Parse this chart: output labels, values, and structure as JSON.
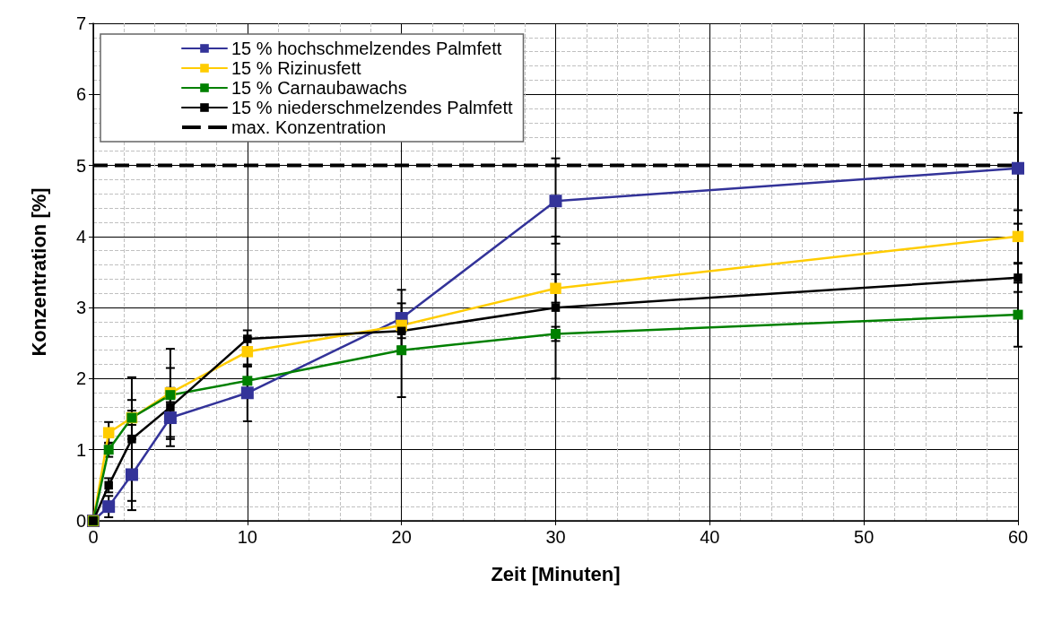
{
  "chart_data": {
    "type": "line",
    "xlabel": "Zeit [Minuten]",
    "ylabel": "Konzentration [%]",
    "x": [
      0,
      1,
      2.5,
      5,
      10,
      20,
      30,
      60
    ],
    "series": [
      {
        "name": "15 % hochschmelzendes Palmfett",
        "color": "#333399",
        "values": [
          0,
          0.2,
          0.65,
          1.45,
          1.8,
          2.85,
          4.5,
          4.96
        ],
        "errors": [
          null,
          0.15,
          0.5,
          0.3,
          0.4,
          0.4,
          0.6,
          0.78
        ]
      },
      {
        "name": "15 % Rizinusfett",
        "color": "#ffcc00",
        "values": [
          0,
          1.24,
          1.45,
          1.8,
          2.38,
          2.75,
          3.27,
          4.0
        ],
        "errors": [
          null,
          0.15,
          0.1,
          0.62,
          0.2,
          0.1,
          0.2,
          0.37
        ]
      },
      {
        "name": "15 % Carnaubawachs",
        "color": "#008000",
        "values": [
          0,
          1.0,
          1.45,
          1.77,
          1.97,
          2.4,
          2.63,
          2.9
        ],
        "errors": [
          null,
          0.1,
          0.25,
          0.1,
          0.2,
          0.66,
          0.1,
          0.45
        ]
      },
      {
        "name": "15 % niederschmelzendes Palmfett",
        "color": "#000000",
        "values": [
          0,
          0.5,
          1.15,
          1.6,
          2.56,
          2.67,
          3.0,
          3.42
        ],
        "errors": [
          null,
          0.1,
          0.87,
          0.55,
          0.12,
          0.1,
          1.0,
          0.2
        ]
      }
    ],
    "ref_lines": [
      {
        "axis": "y",
        "value": 5,
        "label": "max. Konzentration",
        "color": "#000000",
        "line_style": "dashed"
      }
    ],
    "xlim": [
      0,
      60
    ],
    "xticks": [
      0,
      10,
      20,
      30,
      40,
      50,
      60
    ],
    "ylim": [
      0,
      7
    ],
    "yticks": [
      0,
      1,
      2,
      3,
      4,
      5,
      6,
      7
    ],
    "grid": true,
    "legend": "top left",
    "marker": "square",
    "line_style": "solid"
  }
}
